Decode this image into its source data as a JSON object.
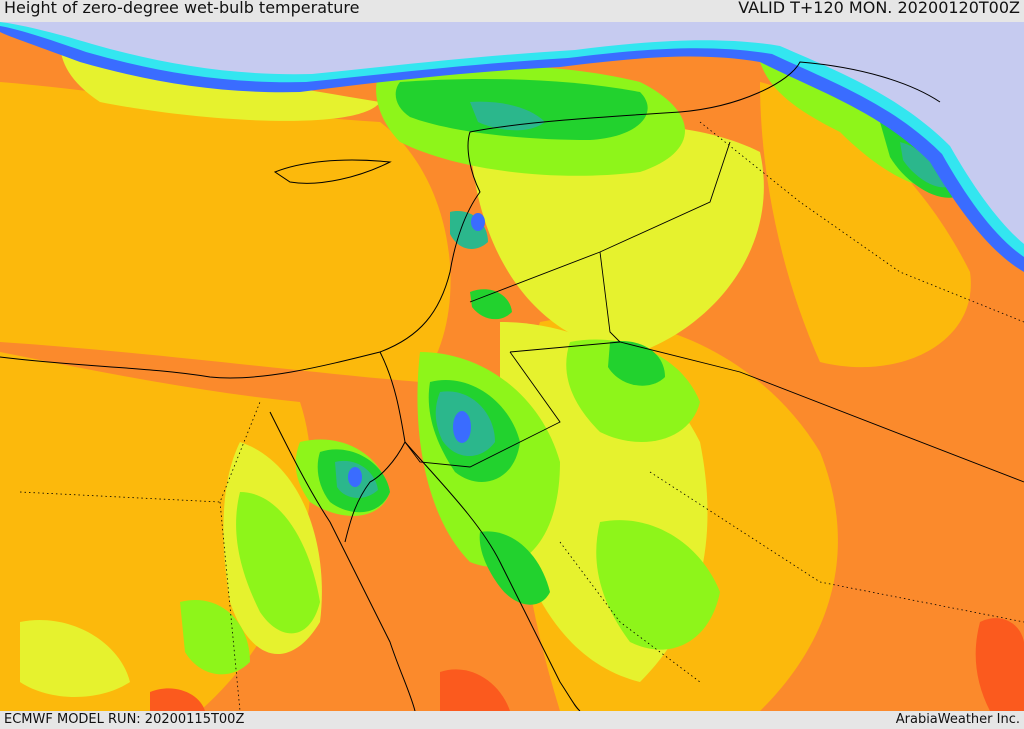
{
  "header": {
    "title": "Height of zero-degree wet-bulb temperature",
    "valid": "VALID T+120 MON. 20200120T00Z"
  },
  "footer": {
    "model_run": "ECMWF MODEL RUN: 20200115T00Z",
    "credit": "ArabiaWeather Inc."
  },
  "palette": {
    "snow": "#c6cbf0",
    "blue": "#3a6cff",
    "cyan": "#33e6f0",
    "teal": "#2bb78c",
    "green": "#22d22e",
    "lime": "#8ef51a",
    "yellow": "#e6f22e",
    "gold": "#fcb90c",
    "orange": "#fb8a2c",
    "red": "#fb5a1e",
    "boundary": "#000000"
  }
}
